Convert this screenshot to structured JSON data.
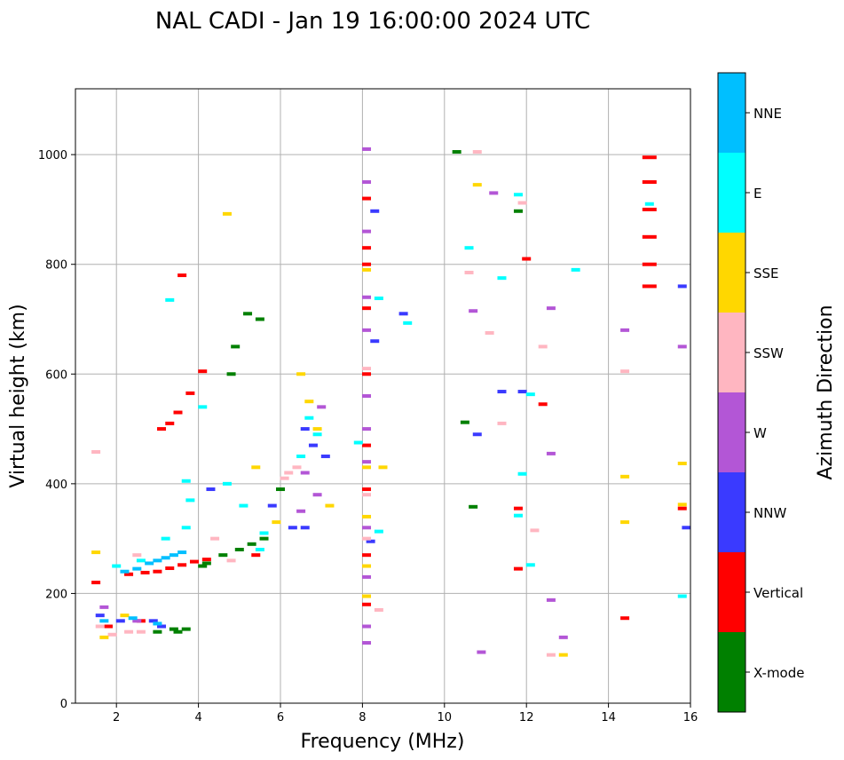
{
  "chart_data": {
    "type": "scatter",
    "title": "NAL CADI - Jan 19 16:00:00 2024 UTC",
    "xlabel": "Frequency (MHz)",
    "ylabel": "Virtual height (km)",
    "xlim": [
      1.0,
      16.0
    ],
    "ylim": [
      0,
      1120
    ],
    "xticks": [
      2,
      4,
      6,
      8,
      10,
      12,
      14,
      16
    ],
    "yticks": [
      0,
      200,
      400,
      600,
      800,
      1000
    ],
    "grid": true,
    "colorbar": {
      "title": "Azimuth Direction",
      "categories": [
        {
          "name": "X-mode",
          "color": "#008000"
        },
        {
          "name": "Vertical",
          "color": "#ff0000"
        },
        {
          "name": "NNW",
          "color": "#3a3aff"
        },
        {
          "name": "W",
          "color": "#b356d6"
        },
        {
          "name": "SSW",
          "color": "#ffb6c1"
        },
        {
          "name": "SSE",
          "color": "#ffd700"
        },
        {
          "name": "E",
          "color": "#00ffff"
        },
        {
          "name": "NNE",
          "color": "#00bfff"
        }
      ]
    },
    "series": [
      {
        "name": "Vertical",
        "points": [
          [
            1.5,
            220
          ],
          [
            2.3,
            235
          ],
          [
            2.7,
            238
          ],
          [
            3.0,
            240
          ],
          [
            3.3,
            246
          ],
          [
            3.6,
            252
          ],
          [
            3.9,
            258
          ],
          [
            4.2,
            262
          ],
          [
            3.1,
            500
          ],
          [
            3.3,
            510
          ],
          [
            3.5,
            530
          ],
          [
            3.8,
            565
          ],
          [
            4.1,
            605
          ],
          [
            3.6,
            780
          ],
          [
            2.6,
            150
          ],
          [
            1.8,
            140
          ],
          [
            5.4,
            270
          ],
          [
            8.1,
            920
          ],
          [
            8.1,
            830
          ],
          [
            8.1,
            800
          ],
          [
            8.1,
            720
          ],
          [
            8.1,
            600
          ],
          [
            8.1,
            470
          ],
          [
            8.1,
            390
          ],
          [
            8.1,
            270
          ],
          [
            8.1,
            180
          ],
          [
            11.8,
            355
          ],
          [
            11.8,
            245
          ],
          [
            12.0,
            810
          ],
          [
            12.4,
            545
          ],
          [
            14.4,
            155
          ],
          [
            15.8,
            355
          ],
          [
            15.0,
            760
          ],
          [
            15.0,
            800
          ],
          [
            15.0,
            850
          ],
          [
            15.0,
            900
          ],
          [
            15.0,
            950
          ],
          [
            15.0,
            995
          ]
        ]
      },
      {
        "name": "X-mode",
        "points": [
          [
            3.5,
            130
          ],
          [
            3.4,
            135
          ],
          [
            3.7,
            135
          ],
          [
            4.2,
            255
          ],
          [
            4.6,
            270
          ],
          [
            5.0,
            280
          ],
          [
            5.3,
            290
          ],
          [
            5.6,
            300
          ],
          [
            6.0,
            390
          ],
          [
            4.8,
            600
          ],
          [
            5.2,
            710
          ],
          [
            5.5,
            700
          ],
          [
            4.9,
            650
          ],
          [
            10.3,
            1005
          ],
          [
            10.5,
            512
          ],
          [
            10.7,
            358
          ],
          [
            11.8,
            897
          ],
          [
            3.0,
            130
          ],
          [
            4.1,
            250
          ]
        ]
      },
      {
        "name": "NNW",
        "points": [
          [
            1.6,
            160
          ],
          [
            2.1,
            150
          ],
          [
            2.9,
            150
          ],
          [
            3.1,
            140
          ],
          [
            5.8,
            360
          ],
          [
            6.3,
            320
          ],
          [
            6.6,
            320
          ],
          [
            6.8,
            470
          ],
          [
            6.6,
            500
          ],
          [
            7.1,
            450
          ],
          [
            8.3,
            897
          ],
          [
            8.3,
            660
          ],
          [
            8.2,
            295
          ],
          [
            9.0,
            710
          ],
          [
            10.8,
            490
          ],
          [
            11.4,
            568
          ],
          [
            11.9,
            568
          ],
          [
            15.8,
            760
          ],
          [
            15.9,
            320
          ],
          [
            4.3,
            390
          ]
        ]
      },
      {
        "name": "W",
        "points": [
          [
            1.7,
            175
          ],
          [
            2.5,
            150
          ],
          [
            6.6,
            420
          ],
          [
            6.9,
            380
          ],
          [
            7.0,
            540
          ],
          [
            6.5,
            350
          ],
          [
            8.1,
            1010
          ],
          [
            8.1,
            950
          ],
          [
            8.1,
            860
          ],
          [
            8.1,
            740
          ],
          [
            8.1,
            680
          ],
          [
            8.1,
            560
          ],
          [
            8.1,
            500
          ],
          [
            8.1,
            440
          ],
          [
            8.1,
            320
          ],
          [
            8.1,
            230
          ],
          [
            8.1,
            140
          ],
          [
            8.1,
            110
          ],
          [
            10.7,
            715
          ],
          [
            11.2,
            930
          ],
          [
            12.6,
            720
          ],
          [
            12.6,
            455
          ],
          [
            12.6,
            188
          ],
          [
            12.9,
            120
          ],
          [
            14.4,
            680
          ],
          [
            15.8,
            650
          ],
          [
            10.9,
            93
          ]
        ]
      },
      {
        "name": "SSW",
        "points": [
          [
            1.5,
            458
          ],
          [
            1.6,
            140
          ],
          [
            1.9,
            125
          ],
          [
            2.3,
            130
          ],
          [
            2.5,
            270
          ],
          [
            2.6,
            130
          ],
          [
            4.4,
            300
          ],
          [
            4.8,
            260
          ],
          [
            6.1,
            410
          ],
          [
            6.2,
            420
          ],
          [
            6.4,
            430
          ],
          [
            8.1,
            610
          ],
          [
            8.1,
            380
          ],
          [
            8.1,
            300
          ],
          [
            8.4,
            170
          ],
          [
            10.8,
            1005
          ],
          [
            11.1,
            675
          ],
          [
            11.4,
            510
          ],
          [
            11.9,
            912
          ],
          [
            12.2,
            315
          ],
          [
            12.4,
            650
          ],
          [
            12.6,
            88
          ],
          [
            14.4,
            605
          ],
          [
            10.6,
            785
          ]
        ]
      },
      {
        "name": "SSE",
        "points": [
          [
            1.5,
            275
          ],
          [
            1.7,
            120
          ],
          [
            2.2,
            160
          ],
          [
            4.7,
            892
          ],
          [
            5.4,
            430
          ],
          [
            6.5,
            600
          ],
          [
            6.7,
            550
          ],
          [
            6.9,
            500
          ],
          [
            7.2,
            360
          ],
          [
            8.1,
            790
          ],
          [
            8.1,
            430
          ],
          [
            8.1,
            340
          ],
          [
            8.1,
            250
          ],
          [
            8.1,
            195
          ],
          [
            8.5,
            430
          ],
          [
            10.8,
            945
          ],
          [
            12.9,
            88
          ],
          [
            14.4,
            413
          ],
          [
            14.4,
            330
          ],
          [
            15.8,
            437
          ],
          [
            15.8,
            362
          ],
          [
            5.9,
            330
          ]
        ]
      },
      {
        "name": "E",
        "points": [
          [
            2.0,
            250
          ],
          [
            2.6,
            260
          ],
          [
            3.2,
            300
          ],
          [
            3.7,
            320
          ],
          [
            3.8,
            370
          ],
          [
            4.1,
            540
          ],
          [
            3.7,
            405
          ],
          [
            4.7,
            400
          ],
          [
            5.1,
            360
          ],
          [
            5.5,
            280
          ],
          [
            5.6,
            310
          ],
          [
            6.5,
            450
          ],
          [
            6.7,
            520
          ],
          [
            6.9,
            490
          ],
          [
            8.4,
            738
          ],
          [
            8.4,
            313
          ],
          [
            9.1,
            693
          ],
          [
            10.6,
            830
          ],
          [
            11.4,
            775
          ],
          [
            11.8,
            927
          ],
          [
            11.8,
            342
          ],
          [
            11.9,
            418
          ],
          [
            12.1,
            563
          ],
          [
            12.1,
            252
          ],
          [
            13.2,
            790
          ],
          [
            15.8,
            195
          ],
          [
            15.0,
            910
          ],
          [
            3.3,
            735
          ],
          [
            7.9,
            475
          ]
        ]
      },
      {
        "name": "NNE",
        "points": [
          [
            2.2,
            240
          ],
          [
            2.5,
            245
          ],
          [
            2.8,
            255
          ],
          [
            3.0,
            260
          ],
          [
            3.2,
            265
          ],
          [
            3.4,
            270
          ],
          [
            3.6,
            275
          ],
          [
            1.7,
            150
          ],
          [
            2.4,
            155
          ],
          [
            3.0,
            145
          ]
        ]
      }
    ]
  }
}
